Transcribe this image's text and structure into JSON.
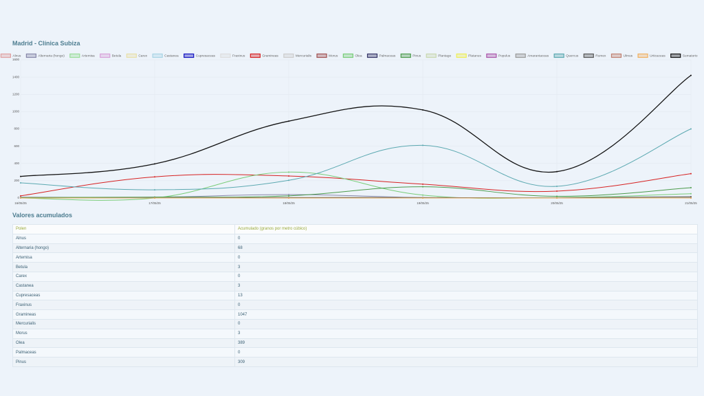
{
  "page": {
    "title": "Madrid - Clínica Subiza",
    "table_title": "Valores acumulados"
  },
  "chart_data": {
    "type": "line",
    "categories": [
      "16/05/25",
      "17/05/25",
      "18/05/25",
      "19/05/25",
      "20/05/25",
      "21/05/25"
    ],
    "ylim": [
      0,
      1600
    ],
    "yticks": [
      0,
      200,
      400,
      600,
      800,
      1000,
      1200,
      1400,
      1600
    ],
    "grid": true,
    "series": [
      {
        "name": "Alnus",
        "color": "#e0a0a0",
        "values": [
          0,
          0,
          0,
          0,
          0,
          0
        ]
      },
      {
        "name": "Alternaria (hongo)",
        "color": "#8888aa",
        "values": [
          10,
          10,
          40,
          5,
          0,
          3
        ]
      },
      {
        "name": "Artemisa",
        "color": "#99dd99",
        "values": [
          0,
          0,
          0,
          0,
          0,
          0
        ]
      },
      {
        "name": "Betula",
        "color": "#d8a0d8",
        "values": [
          0,
          0,
          3,
          0,
          0,
          0
        ]
      },
      {
        "name": "Carex",
        "color": "#e8e0a8",
        "values": [
          0,
          0,
          0,
          0,
          0,
          0
        ]
      },
      {
        "name": "Castanea",
        "color": "#a8d4e4",
        "values": [
          0,
          0,
          0,
          3,
          0,
          0
        ]
      },
      {
        "name": "Cupresaceas",
        "color": "#1010c0",
        "values": [
          3,
          2,
          3,
          2,
          1,
          2
        ]
      },
      {
        "name": "Fraxinus",
        "color": "#dddddd",
        "values": [
          0,
          0,
          0,
          0,
          0,
          0
        ]
      },
      {
        "name": "Gramineas",
        "color": "#d62020",
        "values": [
          25,
          245,
          255,
          160,
          80,
          282
        ]
      },
      {
        "name": "Mercurialis",
        "color": "#cccccc",
        "values": [
          0,
          0,
          0,
          0,
          0,
          0
        ]
      },
      {
        "name": "Morus",
        "color": "#a05050",
        "values": [
          0,
          0,
          3,
          0,
          0,
          0
        ]
      },
      {
        "name": "Olea",
        "color": "#77cc77",
        "values": [
          0,
          0,
          300,
          34,
          5,
          50
        ]
      },
      {
        "name": "Palmaceas",
        "color": "#333366",
        "values": [
          0,
          0,
          0,
          0,
          0,
          0
        ]
      },
      {
        "name": "Pinus",
        "color": "#4a9a4a",
        "values": [
          5,
          10,
          25,
          130,
          20,
          119
        ]
      },
      {
        "name": "Plantago",
        "color": "#c8d8b0",
        "values": [
          0,
          0,
          5,
          5,
          2,
          10
        ]
      },
      {
        "name": "Platanus",
        "color": "#eeee55",
        "values": [
          0,
          0,
          0,
          0,
          0,
          0
        ]
      },
      {
        "name": "Populus",
        "color": "#aa55aa",
        "values": [
          0,
          0,
          0,
          0,
          0,
          0
        ]
      },
      {
        "name": "Amarantaceas",
        "color": "#999999",
        "values": [
          0,
          0,
          0,
          0,
          0,
          0
        ]
      },
      {
        "name": "Quercus",
        "color": "#5aa8b0",
        "values": [
          175,
          95,
          205,
          610,
          135,
          800
        ]
      },
      {
        "name": "Rumex",
        "color": "#555555",
        "values": [
          0,
          0,
          5,
          5,
          2,
          15
        ]
      },
      {
        "name": "Ulmus",
        "color": "#c08070",
        "values": [
          0,
          0,
          0,
          0,
          0,
          0
        ]
      },
      {
        "name": "Urticaceas",
        "color": "#f0b060",
        "values": [
          0,
          0,
          0,
          0,
          0,
          0
        ]
      },
      {
        "name": "Sumatorio",
        "color": "#111111",
        "values": [
          250,
          395,
          890,
          1020,
          305,
          1420
        ]
      }
    ]
  },
  "table": {
    "header": [
      "Polen",
      "Acumulado (granos por metro cúbico)"
    ],
    "rows": [
      [
        "Alnus",
        "0"
      ],
      [
        "Alternaria (hongo)",
        "68"
      ],
      [
        "Artemisa",
        "0"
      ],
      [
        "Betula",
        "3"
      ],
      [
        "Carex",
        "0"
      ],
      [
        "Castanea",
        "3"
      ],
      [
        "Cupresaceas",
        "13"
      ],
      [
        "Fraxinus",
        "0"
      ],
      [
        "Gramineas",
        "1047"
      ],
      [
        "Mercurialis",
        "0"
      ],
      [
        "Morus",
        "3"
      ],
      [
        "Olea",
        "389"
      ],
      [
        "Palmaceas",
        "0"
      ],
      [
        "Pinus",
        "309"
      ]
    ]
  }
}
